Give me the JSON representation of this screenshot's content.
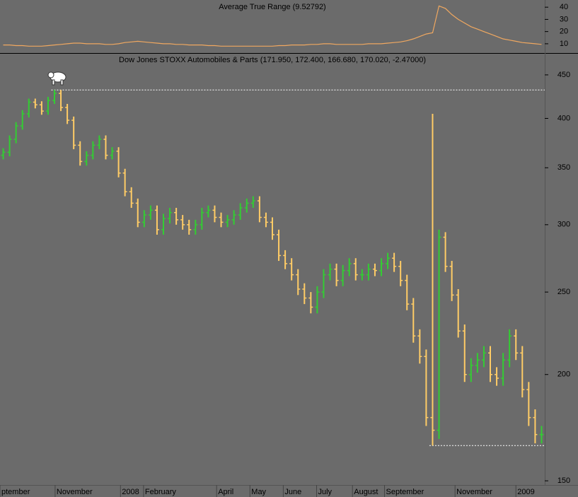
{
  "chart_data": [
    {
      "type": "line",
      "title": "Average True Range (9.52792)",
      "color": "#f0a860",
      "xlim": [
        0,
        85
      ],
      "ylim": [
        2.4,
        45.9
      ],
      "yticks": [
        10,
        20,
        30,
        40
      ],
      "values": [
        9,
        9,
        8.5,
        8.5,
        8,
        8,
        8,
        8.5,
        9,
        9.5,
        10,
        10.5,
        10.5,
        10,
        10,
        10,
        9.5,
        9.5,
        10,
        11,
        11.5,
        12,
        11.5,
        11,
        10.5,
        10,
        10,
        9.5,
        9.5,
        9,
        9,
        9,
        8.5,
        8.5,
        8,
        8,
        8,
        8,
        8,
        8,
        8,
        8,
        8,
        8.5,
        8.5,
        9,
        9,
        9,
        9.5,
        9.5,
        10,
        10,
        9.5,
        9.5,
        9.5,
        9.5,
        9.5,
        10,
        10,
        10,
        10.5,
        11,
        11.5,
        12.5,
        14,
        16,
        18,
        19,
        41,
        39,
        34,
        30,
        27,
        24,
        22,
        20,
        18,
        16,
        14,
        13,
        12,
        11,
        10.5,
        10,
        9.5
      ]
    },
    {
      "type": "ohlc",
      "title": "Dow Jones STOXX Automobiles & Parts (171.950, 172.400, 166.680, 170.020, -2.47000)",
      "up_color": "#33cc33",
      "down_color": "#ffcc66",
      "log_scale": true,
      "xlim": [
        0,
        85
      ],
      "ylim": [
        148.6,
        475.6
      ],
      "yticks": [
        150,
        200,
        250,
        300,
        350,
        400,
        450
      ],
      "xticks": [
        {
          "value": 0,
          "label": "ptember"
        },
        {
          "value": 8.6,
          "label": "November"
        },
        {
          "value": 18.8,
          "label": "2008"
        },
        {
          "value": 22.4,
          "label": "February"
        },
        {
          "value": 33.8,
          "label": "April"
        },
        {
          "value": 39.0,
          "label": "May"
        },
        {
          "value": 44.2,
          "label": "June"
        },
        {
          "value": 49.4,
          "label": "July"
        },
        {
          "value": 55.0,
          "label": "August"
        },
        {
          "value": 60.0,
          "label": "September"
        },
        {
          "value": 71.0,
          "label": "November"
        },
        {
          "value": 80.5,
          "label": "2009"
        }
      ],
      "reference_lines": [
        {
          "y": 432,
          "x0": 8
        },
        {
          "y": 165,
          "x0": 67
        }
      ],
      "open": [
        362,
        365,
        378,
        392,
        405,
        418,
        415,
        408,
        420,
        428,
        412,
        398,
        372,
        356,
        362,
        372,
        378,
        362,
        366,
        345,
        328,
        318,
        302,
        308,
        312,
        296,
        305,
        310,
        304,
        300,
        296,
        300,
        310,
        312,
        306,
        302,
        304,
        308,
        314,
        318,
        320,
        306,
        302,
        292,
        276,
        270,
        262,
        252,
        246,
        240,
        250,
        262,
        266,
        258,
        265,
        270,
        262,
        262,
        266,
        265,
        270,
        274,
        268,
        258,
        242,
        222,
        210,
        178,
        172,
        290,
        268,
        248,
        225,
        200,
        205,
        208,
        212,
        200,
        198,
        208,
        222,
        212,
        192,
        178,
        170
      ],
      "high": [
        369,
        382,
        396,
        409,
        422,
        422,
        419,
        424,
        432,
        432,
        416,
        402,
        376,
        366,
        376,
        382,
        382,
        370,
        370,
        349,
        332,
        322,
        312,
        316,
        316,
        309,
        314,
        314,
        308,
        304,
        304,
        314,
        316,
        316,
        310,
        308,
        312,
        318,
        322,
        324,
        324,
        310,
        306,
        296,
        280,
        274,
        266,
        256,
        250,
        254,
        266,
        270,
        270,
        269,
        274,
        274,
        266,
        270,
        270,
        274,
        278,
        278,
        272,
        262,
        246,
        226,
        214,
        405,
        296,
        294,
        272,
        252,
        229,
        209,
        212,
        216,
        216,
        204,
        212,
        226,
        226,
        216,
        196,
        182,
        174
      ],
      "low": [
        358,
        361,
        374,
        388,
        401,
        411,
        404,
        404,
        416,
        408,
        394,
        368,
        352,
        352,
        358,
        368,
        358,
        358,
        341,
        324,
        314,
        298,
        298,
        304,
        292,
        292,
        301,
        300,
        296,
        292,
        292,
        296,
        306,
        302,
        298,
        298,
        300,
        304,
        310,
        314,
        302,
        298,
        288,
        272,
        266,
        258,
        248,
        242,
        236,
        236,
        246,
        258,
        254,
        254,
        261,
        258,
        258,
        258,
        261,
        261,
        266,
        264,
        254,
        238,
        218,
        206,
        174,
        165,
        168,
        264,
        244,
        221,
        196,
        196,
        201,
        204,
        196,
        194,
        194,
        204,
        208,
        188,
        174,
        166,
        166
      ],
      "close": [
        365,
        378,
        392,
        405,
        418,
        415,
        408,
        420,
        428,
        412,
        398,
        372,
        356,
        362,
        372,
        378,
        362,
        366,
        345,
        328,
        318,
        302,
        308,
        312,
        296,
        305,
        310,
        304,
        300,
        296,
        300,
        310,
        312,
        306,
        302,
        304,
        308,
        314,
        318,
        320,
        306,
        302,
        292,
        276,
        270,
        262,
        252,
        246,
        240,
        250,
        262,
        266,
        258,
        265,
        270,
        262,
        262,
        266,
        265,
        270,
        274,
        268,
        258,
        242,
        222,
        210,
        178,
        172,
        290,
        268,
        248,
        225,
        200,
        205,
        208,
        212,
        200,
        198,
        208,
        222,
        212,
        192,
        178,
        170,
        170
      ]
    }
  ]
}
